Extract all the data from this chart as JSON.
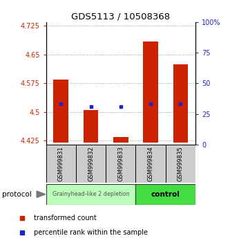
{
  "title": "GDS5113 / 10508368",
  "samples": [
    "GSM999831",
    "GSM999832",
    "GSM999833",
    "GSM999834",
    "GSM999835"
  ],
  "red_values": [
    4.585,
    4.505,
    4.435,
    4.685,
    4.625
  ],
  "blue_yvals": [
    33,
    31,
    31,
    33,
    33
  ],
  "ylim_left": [
    4.415,
    4.735
  ],
  "ylim_right": [
    0,
    100
  ],
  "yticks_left": [
    4.425,
    4.5,
    4.575,
    4.65,
    4.725
  ],
  "yticks_right": [
    0,
    25,
    50,
    75,
    100
  ],
  "ytick_labels_right": [
    "0",
    "25",
    "50",
    "75",
    "100%"
  ],
  "bar_bottom": 4.42,
  "group1_label": "Grainyhead-like 2 depletion",
  "group1_color": "#bbffbb",
  "group2_label": "control",
  "group2_color": "#44dd44",
  "legend_red": "transformed count",
  "legend_blue": "percentile rank within the sample",
  "red_color": "#cc2200",
  "blue_color": "#2222cc",
  "bar_width": 0.5,
  "grid_color": "#888888",
  "title_fontsize": 9.5,
  "tick_fontsize": 7,
  "sample_fontsize": 6,
  "legend_fontsize": 7
}
